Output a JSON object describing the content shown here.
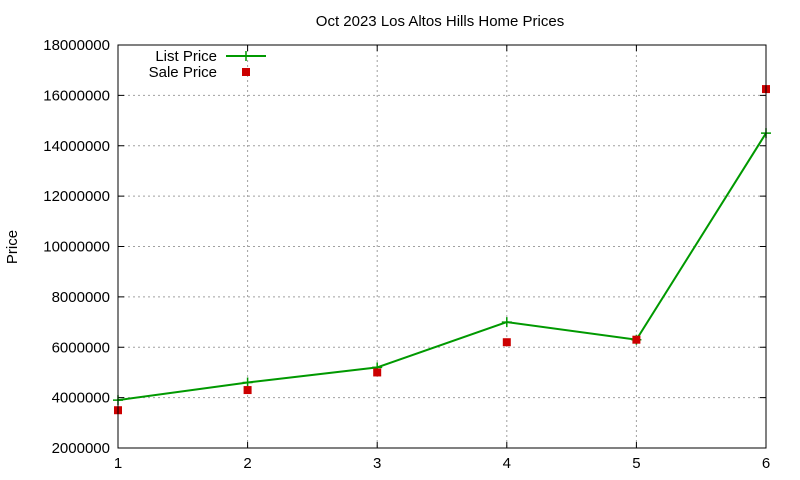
{
  "chart_data": {
    "type": "line",
    "title": "Oct 2023 Los Altos Hills Home Prices",
    "xlabel": "",
    "ylabel": "Price",
    "x": [
      1,
      2,
      3,
      4,
      5,
      6
    ],
    "xlim": [
      1,
      6
    ],
    "ylim": [
      2000000,
      18000000
    ],
    "x_ticks": [
      "1",
      "2",
      "3",
      "4",
      "5",
      "6"
    ],
    "y_ticks": [
      "2000000",
      "4000000",
      "6000000",
      "8000000",
      "10000000",
      "12000000",
      "14000000",
      "16000000",
      "18000000"
    ],
    "grid": true,
    "legend_position": "top-left",
    "series": [
      {
        "name": "List Price",
        "type": "line",
        "marker": "plus",
        "color": "#009900",
        "values": [
          3900000,
          4600000,
          5200000,
          7000000,
          6300000,
          14500000
        ]
      },
      {
        "name": "Sale Price",
        "type": "scatter",
        "marker": "square",
        "color": "#cc0000",
        "values": [
          3500000,
          4300000,
          5000000,
          6200000,
          6300000,
          16250000
        ]
      }
    ]
  }
}
